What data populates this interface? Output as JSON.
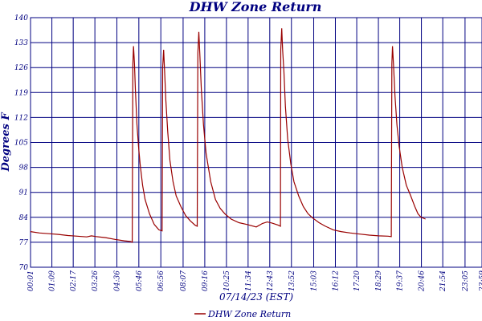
{
  "chart_data": {
    "type": "line",
    "title": "DHW Zone Return",
    "xlabel": "07/14/23 (EST)",
    "ylabel": "Degrees F",
    "ylim": [
      70,
      140
    ],
    "yticks": [
      70,
      77,
      84,
      91,
      98,
      105,
      112,
      119,
      126,
      133,
      140
    ],
    "xticks": [
      "00:01",
      "01:09",
      "02:17",
      "03:26",
      "04:36",
      "05:46",
      "06:56",
      "08:07",
      "09:16",
      "10:25",
      "11:34",
      "12:43",
      "13:52",
      "15:03",
      "16:12",
      "17:20",
      "18:29",
      "19:37",
      "20:46",
      "21:54",
      "23:05",
      "23:59"
    ],
    "grid": true,
    "legend_position": "bottom",
    "line_color": "#990000",
    "grid_color": "#000080",
    "series": [
      {
        "name": "DHW Zone Return",
        "points": [
          [
            1,
            80.0
          ],
          [
            30,
            79.6
          ],
          [
            60,
            79.4
          ],
          [
            90,
            79.2
          ],
          [
            120,
            78.9
          ],
          [
            150,
            78.7
          ],
          [
            180,
            78.5
          ],
          [
            195,
            78.8
          ],
          [
            210,
            78.6
          ],
          [
            240,
            78.3
          ],
          [
            270,
            77.8
          ],
          [
            300,
            77.4
          ],
          [
            320,
            77.2
          ],
          [
            325,
            77.0
          ],
          [
            327,
            127
          ],
          [
            329,
            132
          ],
          [
            332,
            127
          ],
          [
            335,
            120
          ],
          [
            340,
            110
          ],
          [
            345,
            104
          ],
          [
            350,
            99
          ],
          [
            358,
            93
          ],
          [
            366,
            89
          ],
          [
            380,
            85
          ],
          [
            395,
            82
          ],
          [
            410,
            80.5
          ],
          [
            420,
            80.2
          ],
          [
            422,
            126
          ],
          [
            425,
            131
          ],
          [
            428,
            125
          ],
          [
            432,
            117
          ],
          [
            438,
            108
          ],
          [
            445,
            100
          ],
          [
            455,
            94
          ],
          [
            465,
            90
          ],
          [
            480,
            87
          ],
          [
            495,
            84.5
          ],
          [
            510,
            83
          ],
          [
            525,
            81.8
          ],
          [
            532,
            81.5
          ],
          [
            534,
            130
          ],
          [
            537,
            136
          ],
          [
            540,
            130
          ],
          [
            545,
            120
          ],
          [
            552,
            110
          ],
          [
            560,
            102
          ],
          [
            575,
            94
          ],
          [
            590,
            89
          ],
          [
            605,
            86.5
          ],
          [
            620,
            85
          ],
          [
            640,
            83.5
          ],
          [
            665,
            82.5
          ],
          [
            690,
            82
          ],
          [
            720,
            81.3
          ],
          [
            740,
            82.3
          ],
          [
            755,
            82.7
          ],
          [
            770,
            82.4
          ],
          [
            790,
            81.8
          ],
          [
            797,
            81.5
          ],
          [
            798,
            131
          ],
          [
            801,
            137
          ],
          [
            804,
            131
          ],
          [
            808,
            125
          ],
          [
            813,
            115
          ],
          [
            820,
            106
          ],
          [
            830,
            99
          ],
          [
            840,
            94
          ],
          [
            855,
            90
          ],
          [
            870,
            87
          ],
          [
            885,
            85
          ],
          [
            900,
            83.8
          ],
          [
            920,
            82.5
          ],
          [
            940,
            81.5
          ],
          [
            965,
            80.5
          ],
          [
            990,
            80
          ],
          [
            1020,
            79.6
          ],
          [
            1050,
            79.3
          ],
          [
            1080,
            79
          ],
          [
            1110,
            78.8
          ],
          [
            1140,
            78.7
          ],
          [
            1150,
            78.6
          ],
          [
            1152,
            127
          ],
          [
            1154,
            132
          ],
          [
            1157,
            127
          ],
          [
            1162,
            118
          ],
          [
            1168,
            110
          ],
          [
            1175,
            104
          ],
          [
            1185,
            98
          ],
          [
            1198,
            93
          ],
          [
            1212,
            90
          ],
          [
            1225,
            87
          ],
          [
            1235,
            85
          ],
          [
            1245,
            84
          ],
          [
            1259,
            83.5
          ]
        ]
      }
    ]
  }
}
